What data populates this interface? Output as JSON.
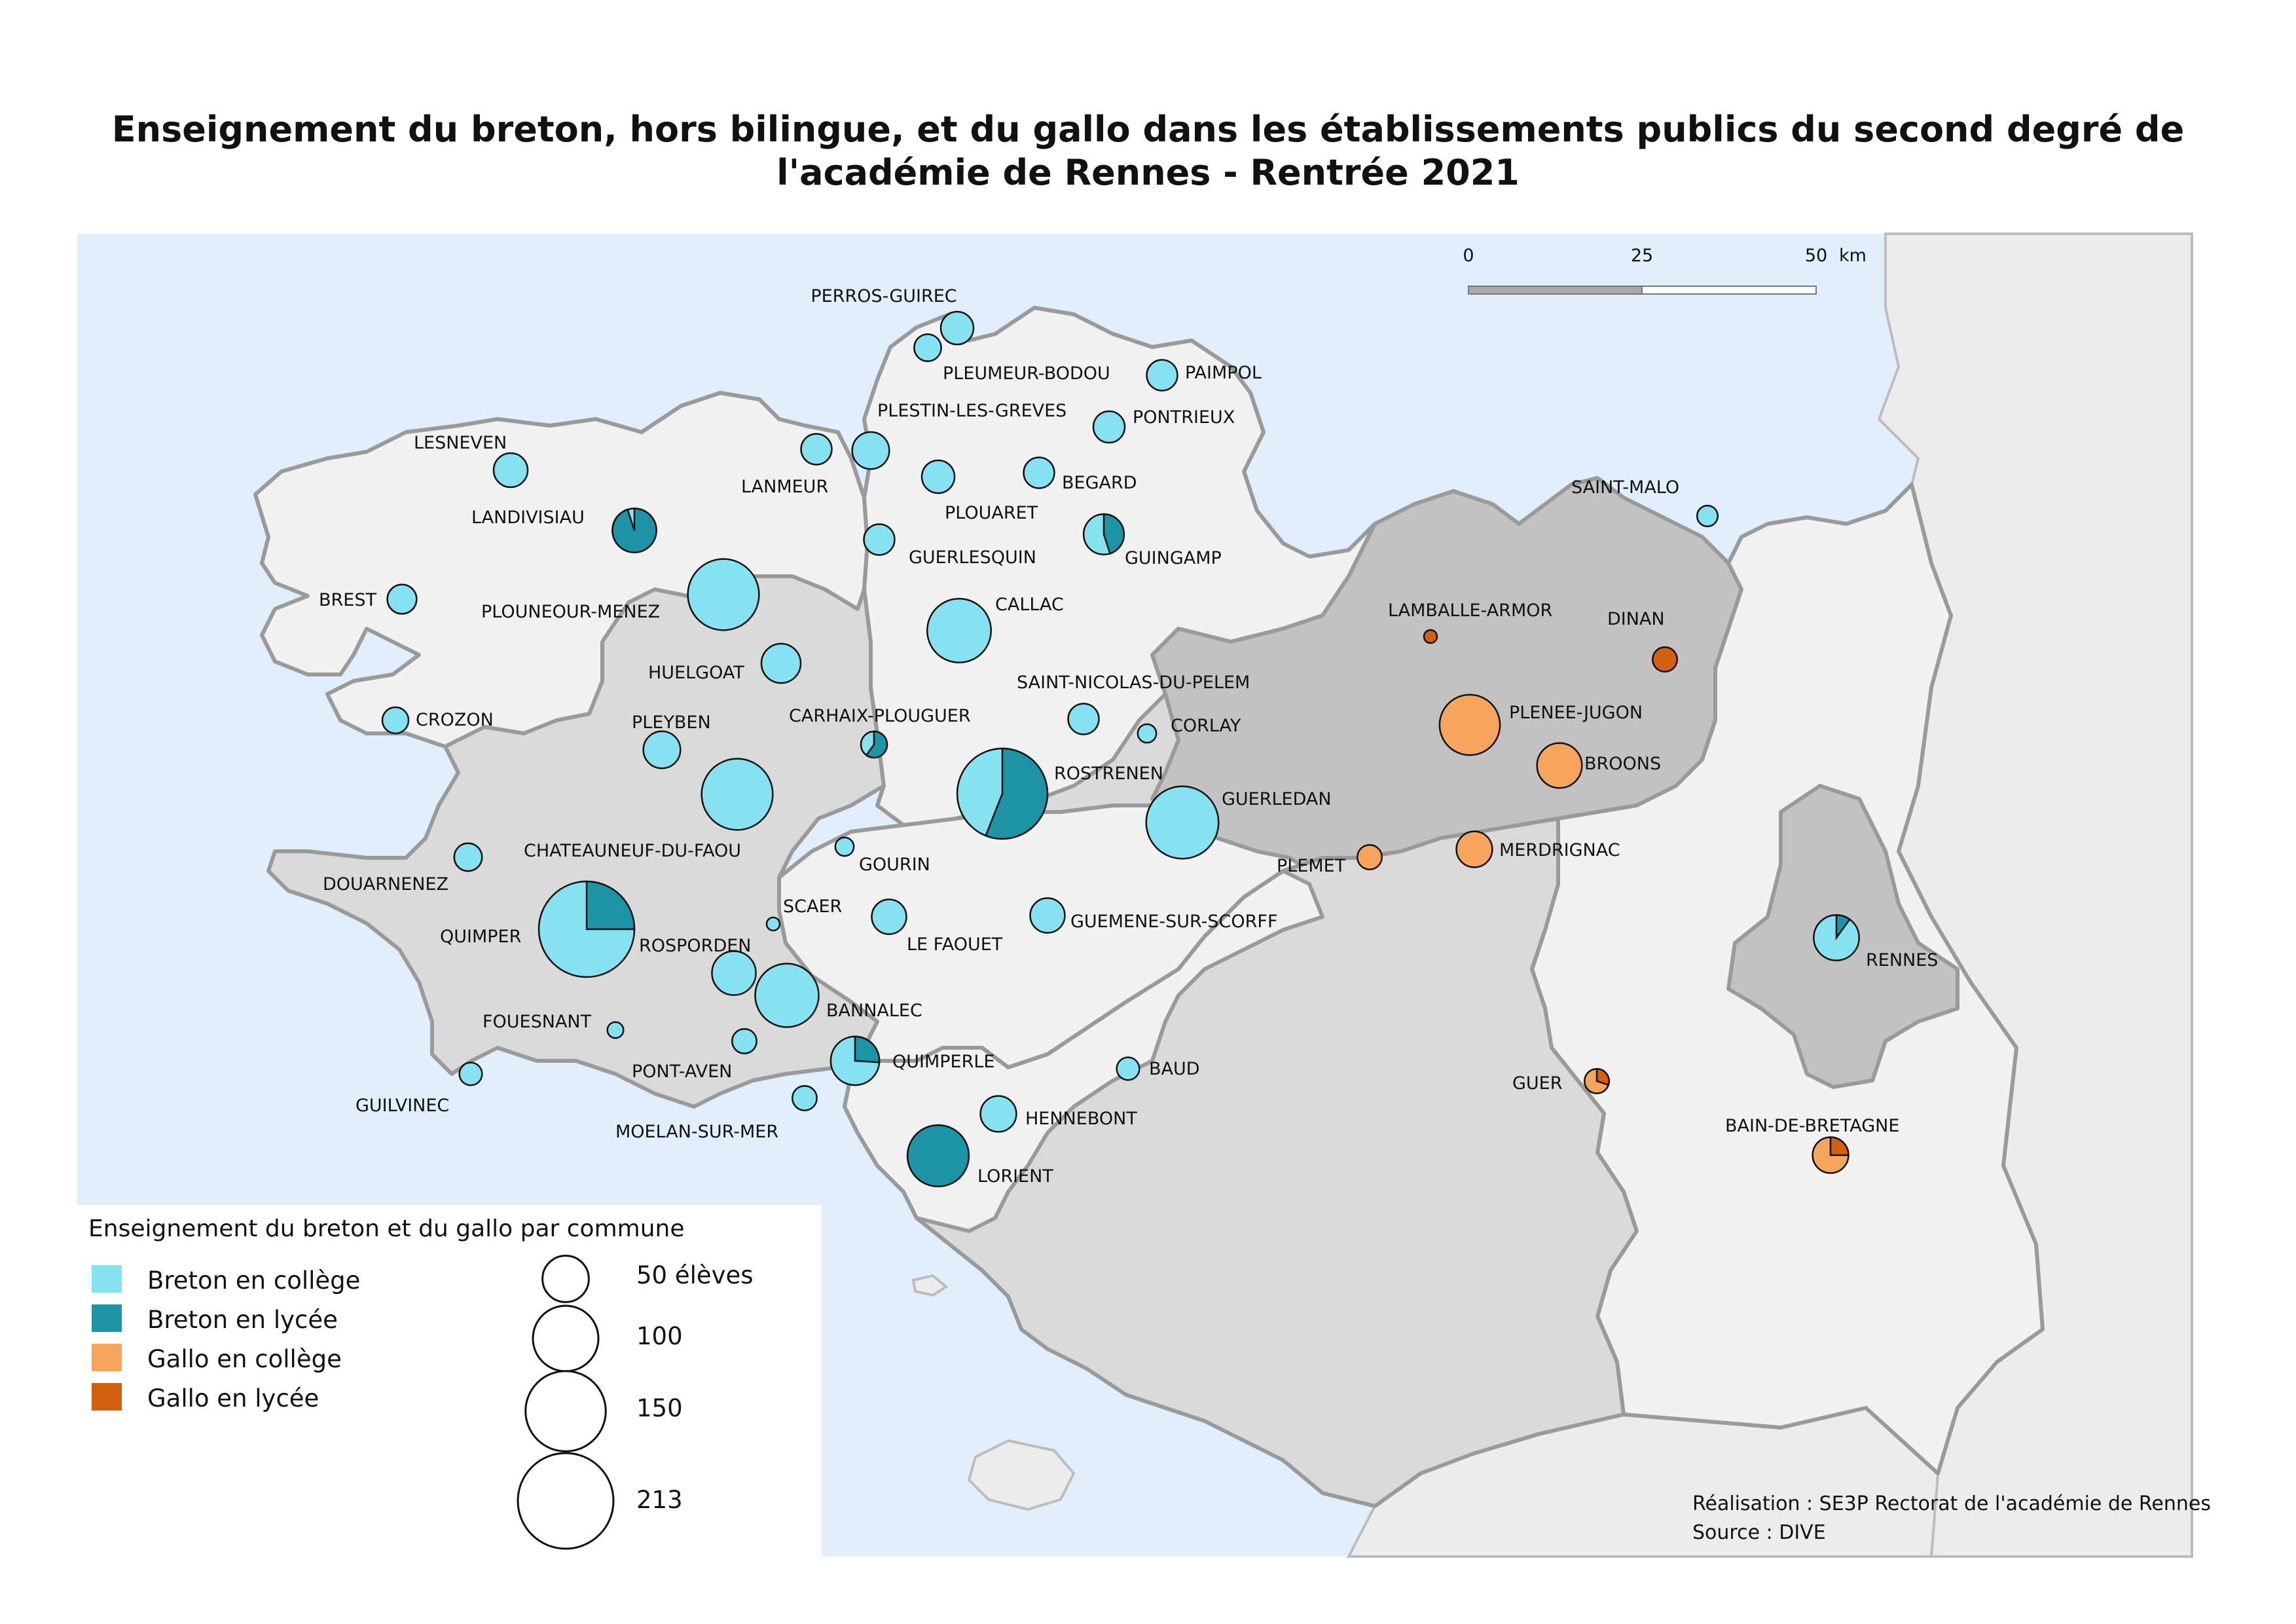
{
  "title": {
    "line1": "Enseignement du breton, hors bilingue, et du gallo dans les établissements publics du second degré de",
    "line2": "l'académie de Rennes - Rentrée 2021"
  },
  "scale_bar": {
    "labels": [
      "0",
      "25",
      "50"
    ],
    "unit": "km"
  },
  "colors": {
    "sea": "#e1eefc",
    "land_outside": "#ececec",
    "dept_light": "#f1f1f1",
    "dept_mid": "#dadada",
    "dept_dark": "#c2c2c2",
    "breton_college": "#86e2f0",
    "breton_lycee": "#1c94a5",
    "gallo_college": "#f7a45c",
    "gallo_lycee": "#d35f10"
  },
  "legend": {
    "title": "Enseignement du breton et du gallo par commune",
    "categories": [
      {
        "label": "Breton en collège",
        "color": "#86e2f0"
      },
      {
        "label": "Breton en lycée",
        "color": "#1c94a5"
      },
      {
        "label": "Gallo en collège",
        "color": "#f7a45c"
      },
      {
        "label": "Gallo en lycée",
        "color": "#d35f10"
      }
    ],
    "sizes": [
      {
        "label": "50 élèves",
        "value": 50
      },
      {
        "label": "100",
        "value": 100
      },
      {
        "label": "150",
        "value": 150
      },
      {
        "label": "213",
        "value": 213
      }
    ]
  },
  "communes": [
    {
      "name": "PERROS-GUIREC",
      "total": 25,
      "breton_lycee_share": 0
    },
    {
      "name": "PLEUMEUR-BODOU",
      "total": 17,
      "breton_lycee_share": 0
    },
    {
      "name": "PAIMPOL",
      "total": 22,
      "breton_lycee_share": 0
    },
    {
      "name": "PLESTIN-LES-GREVES",
      "total": 32,
      "breton_lycee_share": 0
    },
    {
      "name": "PONTRIEUX",
      "total": 23,
      "breton_lycee_share": 0
    },
    {
      "name": "LESNEVEN",
      "total": 27,
      "breton_lycee_share": 0
    },
    {
      "name": "LANMEUR",
      "total": 22,
      "breton_lycee_share": 0
    },
    {
      "name": "BEGARD",
      "total": 22,
      "breton_lycee_share": 0
    },
    {
      "name": "PLOUARET",
      "total": 25,
      "breton_lycee_share": 0
    },
    {
      "name": "LANDIVISIAU",
      "total": 45,
      "breton_lycee_share": 0.95
    },
    {
      "name": "GUINGAMP",
      "total": 38,
      "breton_lycee_share": 0.45
    },
    {
      "name": "GUERLESQUIN",
      "total": 22,
      "breton_lycee_share": 0
    },
    {
      "name": "SAINT-MALO",
      "total": 10,
      "breton_lycee_share": 0
    },
    {
      "name": "BREST",
      "total": 20,
      "breton_lycee_share": 0
    },
    {
      "name": "PLOUNEOUR-MENEZ",
      "total": 118,
      "breton_lycee_share": 0
    },
    {
      "name": "CALLAC",
      "total": 95,
      "breton_lycee_share": 0
    },
    {
      "name": "HUELGOAT",
      "total": 36,
      "breton_lycee_share": 0
    },
    {
      "name": "SAINT-NICOLAS-DU-PELEM",
      "total": 22,
      "breton_lycee_share": 0
    },
    {
      "name": "CROZON",
      "total": 16,
      "breton_lycee_share": 0
    },
    {
      "name": "CARHAIX-PLOUGUER",
      "total": 16,
      "breton_lycee_share": 0.6
    },
    {
      "name": "CORLAY",
      "total": 8,
      "breton_lycee_share": 0
    },
    {
      "name": "PLEYBEN",
      "total": 32,
      "breton_lycee_share": 0
    },
    {
      "name": "ROSTRENEN",
      "total": 190,
      "breton_lycee_share": 0.56
    },
    {
      "name": "CHATEAUNEUF-DU-FAOU",
      "total": 118,
      "breton_lycee_share": 0
    },
    {
      "name": "GUERLEDAN",
      "total": 122,
      "breton_lycee_share": 0
    },
    {
      "name": "GOURIN",
      "total": 8,
      "breton_lycee_share": 0
    },
    {
      "name": "DOUARNENEZ",
      "total": 18,
      "breton_lycee_share": 0
    },
    {
      "name": "SCAER",
      "total": 4,
      "breton_lycee_share": 0
    },
    {
      "name": "QUIMPER",
      "total": 213,
      "breton_lycee_share": 0.25
    },
    {
      "name": "ROSPORDEN",
      "total": 45,
      "breton_lycee_share": 0
    },
    {
      "name": "LE FAOUET",
      "total": 28,
      "breton_lycee_share": 0
    },
    {
      "name": "GUEMENE-SUR-SCORFF",
      "total": 28,
      "breton_lycee_share": 0
    },
    {
      "name": "BANNALEC",
      "total": 94,
      "breton_lycee_share": 0
    },
    {
      "name": "FOUESNANT",
      "total": 6,
      "breton_lycee_share": 0
    },
    {
      "name": "PONT-AVEN",
      "total": 14,
      "breton_lycee_share": 0
    },
    {
      "name": "QUIMPERLE",
      "total": 55,
      "breton_lycee_share": 0.26
    },
    {
      "name": "BAUD",
      "total": 12,
      "breton_lycee_share": 0
    },
    {
      "name": "GUILVINEC",
      "total": 12,
      "breton_lycee_share": 0
    },
    {
      "name": "MOELAN-SUR-MER",
      "total": 14,
      "breton_lycee_share": 0
    },
    {
      "name": "HENNEBONT",
      "total": 30,
      "breton_lycee_share": 0
    },
    {
      "name": "LORIENT",
      "total": 88,
      "breton_lycee_share": 1
    },
    {
      "name": "RENNES",
      "total": 48,
      "breton_lycee_share": 0.1
    }
  ],
  "gallo_communes": [
    {
      "name": "LAMBALLE-ARMOR",
      "total": 4,
      "gallo_lycee_share": 1
    },
    {
      "name": "DINAN",
      "total": 14,
      "gallo_lycee_share": 1
    },
    {
      "name": "PLENEE-JUGON",
      "total": 85,
      "gallo_lycee_share": 0
    },
    {
      "name": "BROONS",
      "total": 47,
      "gallo_lycee_share": 0
    },
    {
      "name": "PLEMET",
      "total": 14,
      "gallo_lycee_share": 0
    },
    {
      "name": "MERDRIGNAC",
      "total": 30,
      "gallo_lycee_share": 0
    },
    {
      "name": "GUER",
      "total": 14,
      "gallo_lycee_share": 0.3
    },
    {
      "name": "BAIN-DE-BRETAGNE",
      "total": 30,
      "gallo_lycee_share": 0.25
    }
  ],
  "credits": {
    "line1": "Réalisation : SE3P Rectorat de l'académie de Rennes",
    "line2": "Source : DIVE"
  }
}
